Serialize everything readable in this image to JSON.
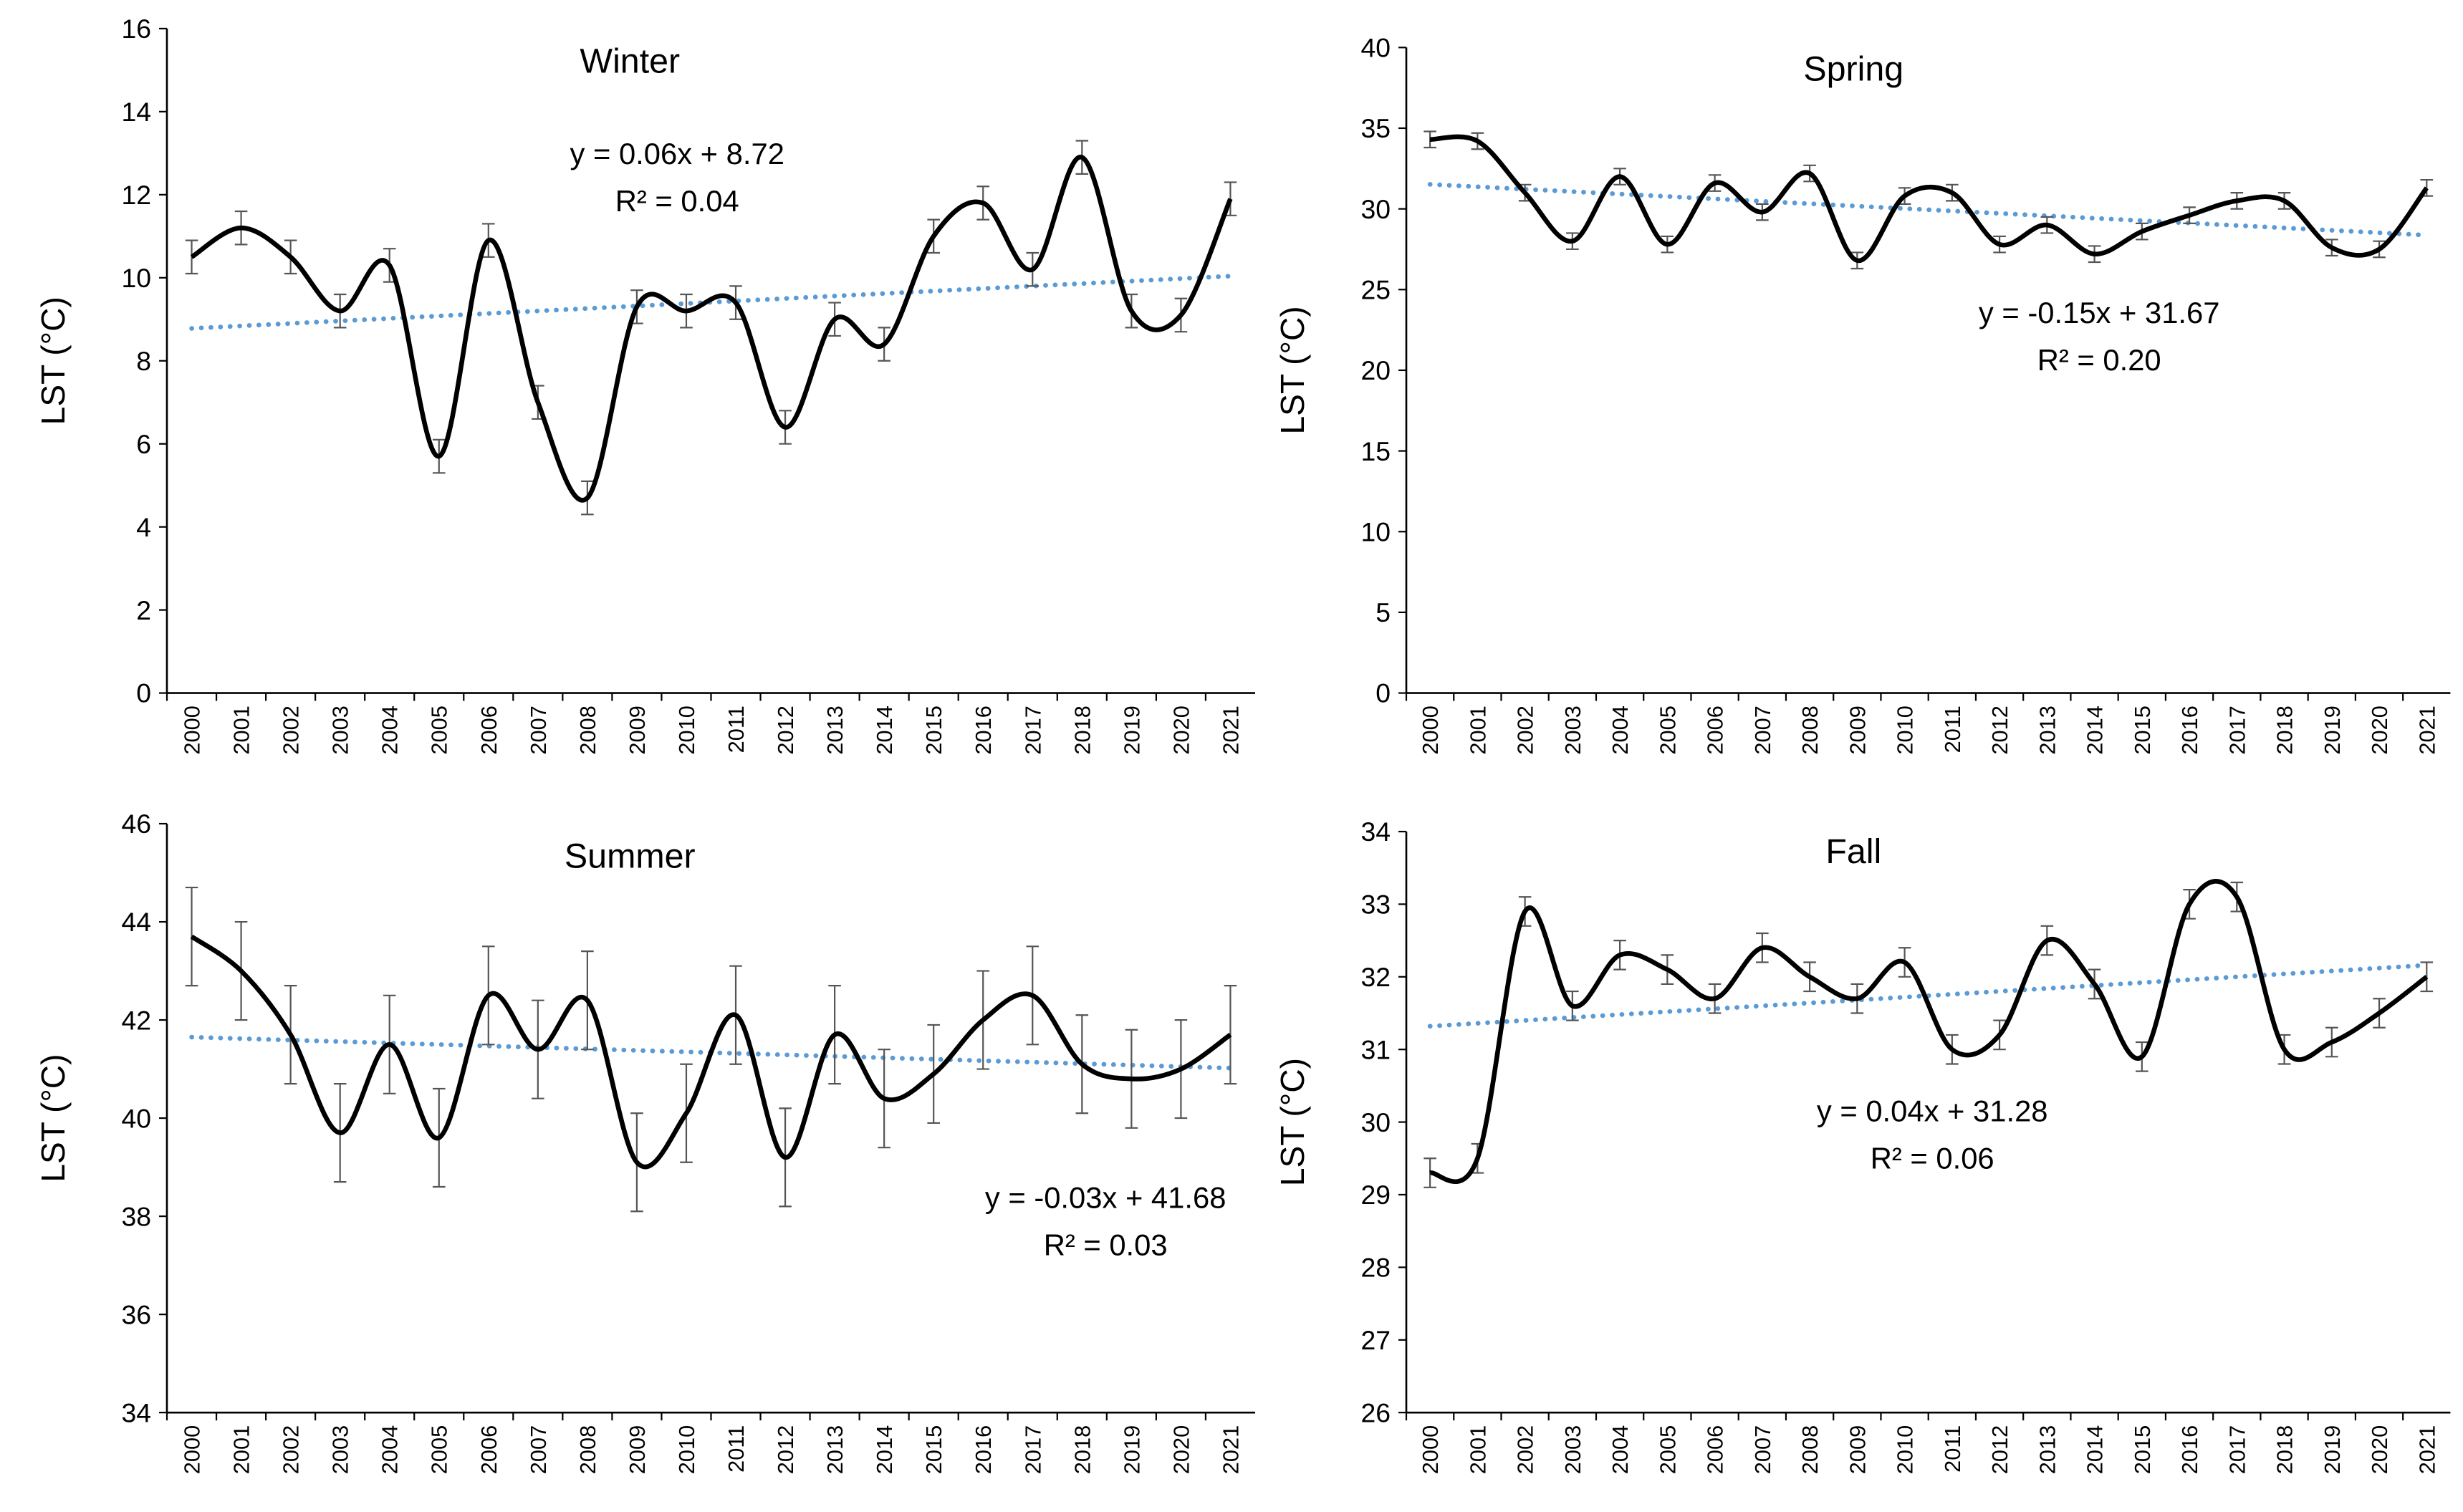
{
  "chart_data": [
    {
      "type": "line",
      "title": "Winter",
      "y_label": "LST (°C)",
      "categories": [
        "2000",
        "2001",
        "2002",
        "2003",
        "2004",
        "2005",
        "2006",
        "2007",
        "2008",
        "2009",
        "2010",
        "2011",
        "2012",
        "2013",
        "2014",
        "2015",
        "2016",
        "2017",
        "2018",
        "2019",
        "2020",
        "2021"
      ],
      "series": [
        {
          "color": "#000000",
          "values": [
            10.5,
            11.2,
            10.5,
            9.2,
            10.3,
            5.7,
            10.9,
            7.0,
            4.7,
            9.3,
            9.2,
            9.4,
            6.4,
            9.0,
            8.4,
            11.0,
            11.8,
            10.2,
            12.9,
            9.2,
            9.1,
            11.9
          ],
          "errors": [
            0.4,
            0.4,
            0.4,
            0.4,
            0.4,
            0.4,
            0.4,
            0.4,
            0.4,
            0.4,
            0.4,
            0.4,
            0.4,
            0.4,
            0.4,
            0.4,
            0.4,
            0.4,
            0.4,
            0.4,
            0.4,
            0.4
          ]
        }
      ],
      "trend": {
        "slope": 0.06,
        "intercept": 8.72,
        "equation": "y = 0.06x + 8.72",
        "r2": 0.04,
        "r2_label": "R² = 0.04",
        "color": "#5b9bd5"
      },
      "ylim": [
        0,
        16
      ],
      "yticks": [
        0,
        2,
        4,
        6,
        8,
        10,
        12,
        14,
        16
      ]
    },
    {
      "type": "line",
      "title": "Spring",
      "y_label": "LST (°C)",
      "categories": [
        "2000",
        "2001",
        "2002",
        "2003",
        "2004",
        "2005",
        "2006",
        "2007",
        "2008",
        "2009",
        "2010",
        "2011",
        "2012",
        "2013",
        "2014",
        "2015",
        "2016",
        "2017",
        "2018",
        "2019",
        "2020",
        "2021"
      ],
      "series": [
        {
          "color": "#000000",
          "values": [
            34.3,
            34.2,
            31.0,
            28.0,
            32.0,
            27.8,
            31.6,
            29.8,
            32.2,
            26.8,
            30.8,
            31.0,
            27.8,
            29.0,
            27.2,
            28.6,
            29.6,
            30.5,
            30.5,
            27.6,
            27.5,
            31.3
          ],
          "errors": [
            0.5,
            0.5,
            0.5,
            0.5,
            0.5,
            0.5,
            0.5,
            0.5,
            0.5,
            0.5,
            0.5,
            0.5,
            0.5,
            0.5,
            0.5,
            0.5,
            0.5,
            0.5,
            0.5,
            0.5,
            0.5,
            0.5
          ]
        }
      ],
      "trend": {
        "slope": -0.15,
        "intercept": 31.67,
        "equation": "y = -0.15x + 31.67",
        "r2": 0.2,
        "r2_label": "R² = 0.20",
        "color": "#5b9bd5"
      },
      "ylim": [
        0,
        40
      ],
      "yticks": [
        0,
        5,
        10,
        15,
        20,
        25,
        30,
        35,
        40
      ]
    },
    {
      "type": "line",
      "title": "Summer",
      "y_label": "LST (°C)",
      "categories": [
        "2000",
        "2001",
        "2002",
        "2003",
        "2004",
        "2005",
        "2006",
        "2007",
        "2008",
        "2009",
        "2010",
        "2011",
        "2012",
        "2013",
        "2014",
        "2015",
        "2016",
        "2017",
        "2018",
        "2019",
        "2020",
        "2021"
      ],
      "series": [
        {
          "color": "#000000",
          "values": [
            43.7,
            43.0,
            41.7,
            39.7,
            41.5,
            39.6,
            42.5,
            41.4,
            42.4,
            39.1,
            40.1,
            42.1,
            39.2,
            41.7,
            40.4,
            40.9,
            42.0,
            42.5,
            41.1,
            40.8,
            41.0,
            41.7
          ],
          "errors": [
            1.0,
            1.0,
            1.0,
            1.0,
            1.0,
            1.0,
            1.0,
            1.0,
            1.0,
            1.0,
            1.0,
            1.0,
            1.0,
            1.0,
            1.0,
            1.0,
            1.0,
            1.0,
            1.0,
            1.0,
            1.0,
            1.0
          ]
        }
      ],
      "trend": {
        "slope": -0.03,
        "intercept": 41.68,
        "equation": "y = -0.03x + 41.68",
        "r2": 0.03,
        "r2_label": "R² = 0.03",
        "color": "#5b9bd5"
      },
      "ylim": [
        34,
        46
      ],
      "yticks": [
        34,
        36,
        38,
        40,
        42,
        44,
        46
      ]
    },
    {
      "type": "line",
      "title": "Fall",
      "y_label": "LST (°C)",
      "categories": [
        "2000",
        "2001",
        "2002",
        "2003",
        "2004",
        "2005",
        "2006",
        "2007",
        "2008",
        "2009",
        "2010",
        "2011",
        "2012",
        "2013",
        "2014",
        "2015",
        "2016",
        "2017",
        "2018",
        "2019",
        "2020",
        "2021"
      ],
      "series": [
        {
          "color": "#000000",
          "values": [
            29.3,
            29.5,
            32.9,
            31.6,
            32.3,
            32.1,
            31.7,
            32.4,
            32.0,
            31.7,
            32.2,
            31.0,
            31.2,
            32.5,
            31.9,
            30.9,
            33.0,
            33.1,
            31.0,
            31.1,
            31.5,
            32.0
          ],
          "errors": [
            0.2,
            0.2,
            0.2,
            0.2,
            0.2,
            0.2,
            0.2,
            0.2,
            0.2,
            0.2,
            0.2,
            0.2,
            0.2,
            0.2,
            0.2,
            0.2,
            0.2,
            0.2,
            0.2,
            0.2,
            0.2,
            0.2
          ]
        }
      ],
      "trend": {
        "slope": 0.04,
        "intercept": 31.28,
        "equation": "y = 0.04x + 31.28",
        "r2": 0.06,
        "r2_label": "R² = 0.06",
        "color": "#5b9bd5"
      },
      "ylim": [
        26,
        34
      ],
      "yticks": [
        26,
        27,
        28,
        29,
        30,
        31,
        32,
        33,
        34
      ]
    }
  ]
}
